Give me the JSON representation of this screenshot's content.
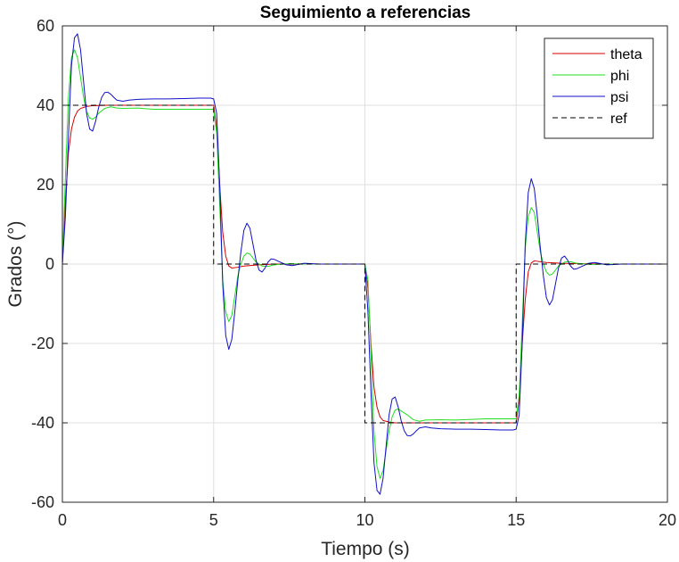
{
  "chart_data": {
    "type": "line",
    "title": "Seguimiento a referencias",
    "xlabel": "Tiempo (s)",
    "ylabel": "Grados (°)",
    "xlim": [
      0,
      20
    ],
    "ylim": [
      -60,
      60
    ],
    "xticks": [
      0,
      5,
      10,
      15,
      20
    ],
    "xtick_labels": [
      "0",
      "5",
      "10",
      "15",
      "20"
    ],
    "yticks": [
      -60,
      -40,
      -20,
      0,
      20,
      40,
      60
    ],
    "ytick_labels": [
      "-60",
      "-40",
      "-20",
      "0",
      "20",
      "40",
      "60"
    ],
    "grid": true,
    "legend_position": "top-right",
    "series": [
      {
        "name": "theta",
        "color": "#d40000",
        "style": "solid",
        "x": [
          0,
          0.1,
          0.2,
          0.3,
          0.4,
          0.5,
          0.6,
          0.8,
          1.0,
          1.5,
          2.0,
          3.0,
          4.0,
          5.0,
          5.1,
          5.2,
          5.3,
          5.4,
          5.5,
          5.6,
          5.8,
          6.0,
          6.5,
          7.0,
          8.0,
          9.0,
          10.0,
          10.1,
          10.2,
          10.3,
          10.4,
          10.5,
          10.6,
          10.8,
          11.0,
          11.5,
          12.0,
          13.0,
          14.0,
          15.0,
          15.1,
          15.2,
          15.3,
          15.4,
          15.5,
          15.6,
          15.8,
          16.0,
          16.5,
          17.0,
          18.0,
          19.0,
          20.0
        ],
        "y": [
          0,
          16,
          28,
          34,
          37,
          38.5,
          39.2,
          39.7,
          39.9,
          40,
          40,
          40,
          40,
          40,
          34,
          20,
          8,
          2,
          -0.5,
          -1,
          -0.8,
          -0.5,
          -0.2,
          0,
          0,
          0,
          0,
          -6,
          -20,
          -31,
          -36,
          -38.5,
          -39.4,
          -39.8,
          -40,
          -40,
          -40,
          -40,
          -40,
          -40,
          -34,
          -20,
          -9,
          -2,
          0.3,
          0.8,
          0.6,
          0.4,
          0.2,
          0.1,
          0,
          0,
          0
        ]
      },
      {
        "name": "phi",
        "color": "#22dd22",
        "style": "solid",
        "x": [
          0,
          0.1,
          0.2,
          0.3,
          0.4,
          0.5,
          0.6,
          0.7,
          0.8,
          0.9,
          1.0,
          1.1,
          1.2,
          1.4,
          1.6,
          1.8,
          2.0,
          2.5,
          3.0,
          4.0,
          5.0,
          5.1,
          5.2,
          5.3,
          5.4,
          5.5,
          5.6,
          5.7,
          5.8,
          5.9,
          6.0,
          6.1,
          6.2,
          6.3,
          6.4,
          6.6,
          6.8,
          7.0,
          7.5,
          8.0,
          9.0,
          10.0,
          10.1,
          10.2,
          10.3,
          10.4,
          10.5,
          10.6,
          10.7,
          10.8,
          10.9,
          11.0,
          11.1,
          11.2,
          11.4,
          11.6,
          11.8,
          12.0,
          12.5,
          13.0,
          14.0,
          15.0,
          15.1,
          15.2,
          15.3,
          15.4,
          15.5,
          15.6,
          15.7,
          15.8,
          15.9,
          16.0,
          16.1,
          16.2,
          16.3,
          16.4,
          16.6,
          16.8,
          17.0,
          17.5,
          18.0,
          19.0,
          20.0
        ],
        "y": [
          0,
          22,
          42,
          52,
          54,
          52,
          47,
          42,
          38.5,
          36.8,
          36.5,
          37,
          38,
          39.2,
          39.6,
          39.3,
          39.2,
          39.3,
          39,
          39,
          39,
          33,
          15,
          -4,
          -12,
          -14.5,
          -13,
          -8,
          -3,
          0,
          2,
          2.8,
          2.5,
          1.5,
          0.5,
          -0.5,
          -0.6,
          -0.2,
          0.1,
          0,
          0,
          0,
          -4,
          -22,
          -42,
          -51,
          -54,
          -52,
          -47,
          -42,
          -38.5,
          -36.8,
          -36.5,
          -37,
          -38,
          -39.2,
          -39.6,
          -39.3,
          -39.2,
          -39.3,
          -39,
          -39,
          -33,
          -15,
          4,
          12,
          14.2,
          13,
          8,
          3,
          0,
          -2,
          -2.8,
          -2.5,
          -1.5,
          -0.5,
          0.5,
          0.6,
          0.2,
          -0.1,
          0,
          0,
          0
        ]
      },
      {
        "name": "psi",
        "color": "#1010c8",
        "style": "solid",
        "x": [
          0,
          0.1,
          0.2,
          0.3,
          0.4,
          0.5,
          0.6,
          0.7,
          0.8,
          0.9,
          1.0,
          1.1,
          1.2,
          1.3,
          1.4,
          1.5,
          1.6,
          1.7,
          1.8,
          2.0,
          2.2,
          2.5,
          3.0,
          3.5,
          4.0,
          4.5,
          4.9,
          5.0,
          5.1,
          5.2,
          5.3,
          5.4,
          5.5,
          5.6,
          5.7,
          5.8,
          5.9,
          6.0,
          6.1,
          6.2,
          6.3,
          6.4,
          6.5,
          6.6,
          6.7,
          6.8,
          6.9,
          7.0,
          7.2,
          7.4,
          7.6,
          8.0,
          8.5,
          9.0,
          10.0,
          10.1,
          10.2,
          10.3,
          10.4,
          10.5,
          10.6,
          10.7,
          10.8,
          10.9,
          11.0,
          11.1,
          11.2,
          11.3,
          11.4,
          11.5,
          11.6,
          11.7,
          11.8,
          12.0,
          12.2,
          12.5,
          13.0,
          13.5,
          14.0,
          14.5,
          14.9,
          15.0,
          15.1,
          15.2,
          15.3,
          15.4,
          15.5,
          15.6,
          15.7,
          15.8,
          15.9,
          16.0,
          16.1,
          16.2,
          16.3,
          16.4,
          16.5,
          16.6,
          16.7,
          16.8,
          16.9,
          17.0,
          17.2,
          17.4,
          17.6,
          18.0,
          18.5,
          19.0,
          20.0
        ],
        "y": [
          0,
          12,
          32,
          50,
          57,
          58,
          54,
          46,
          38,
          34,
          33.5,
          36,
          39.5,
          42,
          43.2,
          43.3,
          42.8,
          42,
          41.3,
          41,
          41.3,
          41.5,
          41.6,
          41.6,
          41.7,
          41.8,
          41.8,
          41.6,
          38,
          20,
          -5,
          -18,
          -21.5,
          -19,
          -12,
          -4,
          3,
          8.5,
          10.3,
          9,
          5,
          1,
          -1.5,
          -2,
          -1,
          0.5,
          1.3,
          1.2,
          0.5,
          -0.2,
          -0.4,
          0.2,
          0,
          0,
          0,
          -12,
          -32,
          -50,
          -57,
          -58,
          -54,
          -46,
          -38,
          -34,
          -33.5,
          -36,
          -39.5,
          -42,
          -43.2,
          -43.3,
          -42.8,
          -42,
          -41.3,
          -41,
          -41.3,
          -41.5,
          -41.6,
          -41.6,
          -41.7,
          -41.8,
          -41.8,
          -41.6,
          -38,
          -20,
          5,
          18,
          21.5,
          19,
          12,
          4,
          -3,
          -8.5,
          -10.3,
          -9,
          -5,
          -1,
          1.5,
          2,
          1,
          -0.5,
          -1.3,
          -1.2,
          -0.5,
          0.2,
          0.4,
          -0.2,
          0,
          0,
          0
        ]
      },
      {
        "name": "ref",
        "color": "#000000",
        "style": "dashed",
        "x": [
          0,
          0,
          5,
          5,
          10,
          10,
          15,
          15,
          20
        ],
        "y": [
          0,
          40,
          40,
          0,
          0,
          -40,
          -40,
          0,
          0
        ]
      }
    ]
  }
}
